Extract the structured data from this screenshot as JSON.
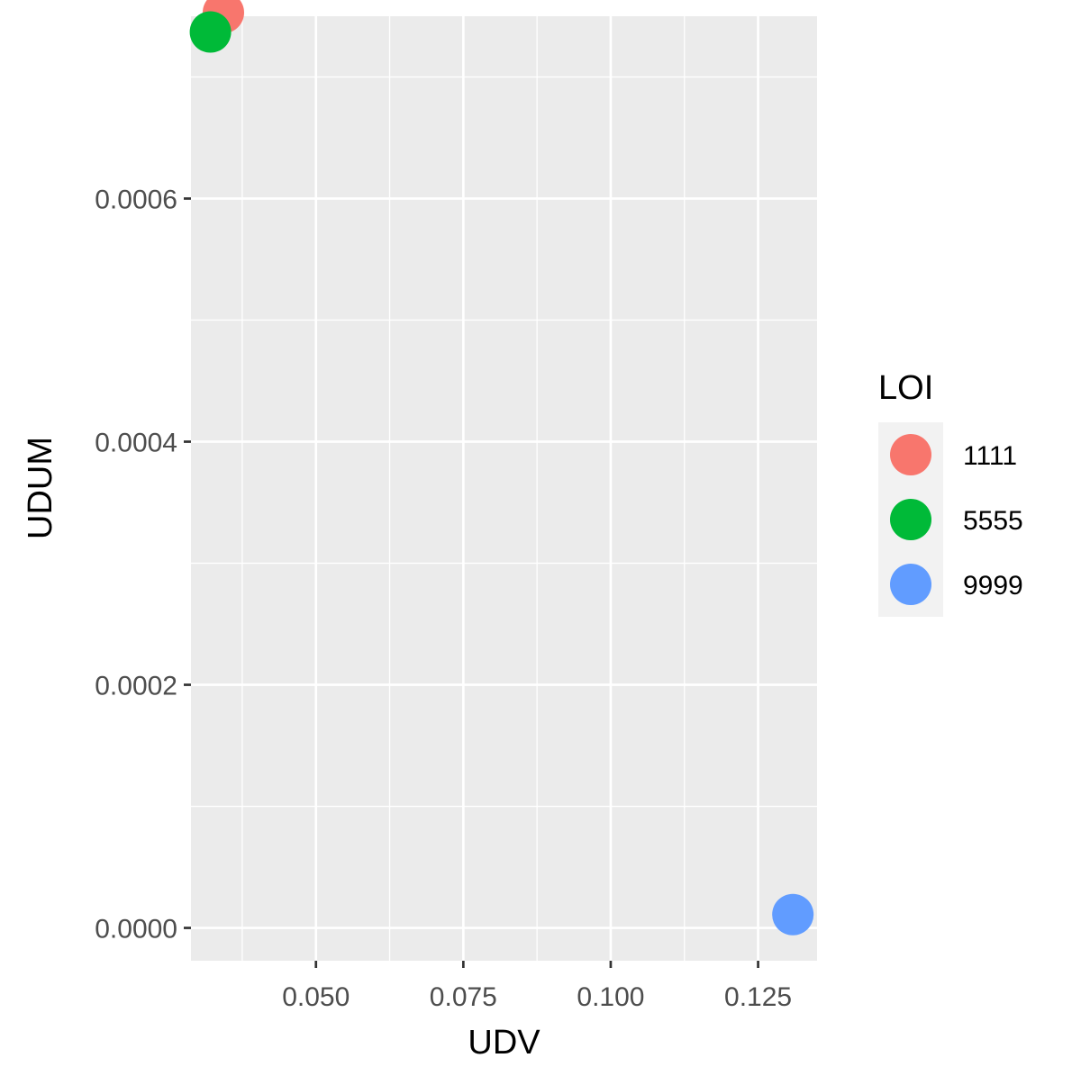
{
  "chart_data": {
    "type": "scatter",
    "title": "",
    "xlabel": "UDV",
    "ylabel": "UDUM",
    "xlim": [
      0.0288,
      0.135
    ],
    "ylim": [
      -2.7e-05,
      0.00075
    ],
    "x_ticks": [
      {
        "value": 0.05,
        "label": "0.050"
      },
      {
        "value": 0.075,
        "label": "0.075"
      },
      {
        "value": 0.1,
        "label": "0.100"
      },
      {
        "value": 0.125,
        "label": "0.125"
      }
    ],
    "y_ticks": [
      {
        "value": 0.0,
        "label": "0.0000"
      },
      {
        "value": 0.0002,
        "label": "0.0002"
      },
      {
        "value": 0.0004,
        "label": "0.0004"
      },
      {
        "value": 0.0006,
        "label": "0.0006"
      }
    ],
    "grid": true,
    "legend": {
      "title": "LOI",
      "position": "right"
    },
    "series": [
      {
        "name": "1111",
        "color": "#F8766D",
        "points": [
          {
            "x": 0.0343,
            "y": 0.000753
          }
        ]
      },
      {
        "name": "5555",
        "color": "#00BA38",
        "points": [
          {
            "x": 0.0321,
            "y": 0.000737
          }
        ]
      },
      {
        "name": "9999",
        "color": "#619CFF",
        "points": [
          {
            "x": 0.1309,
            "y": 1.1e-05
          }
        ]
      }
    ]
  }
}
